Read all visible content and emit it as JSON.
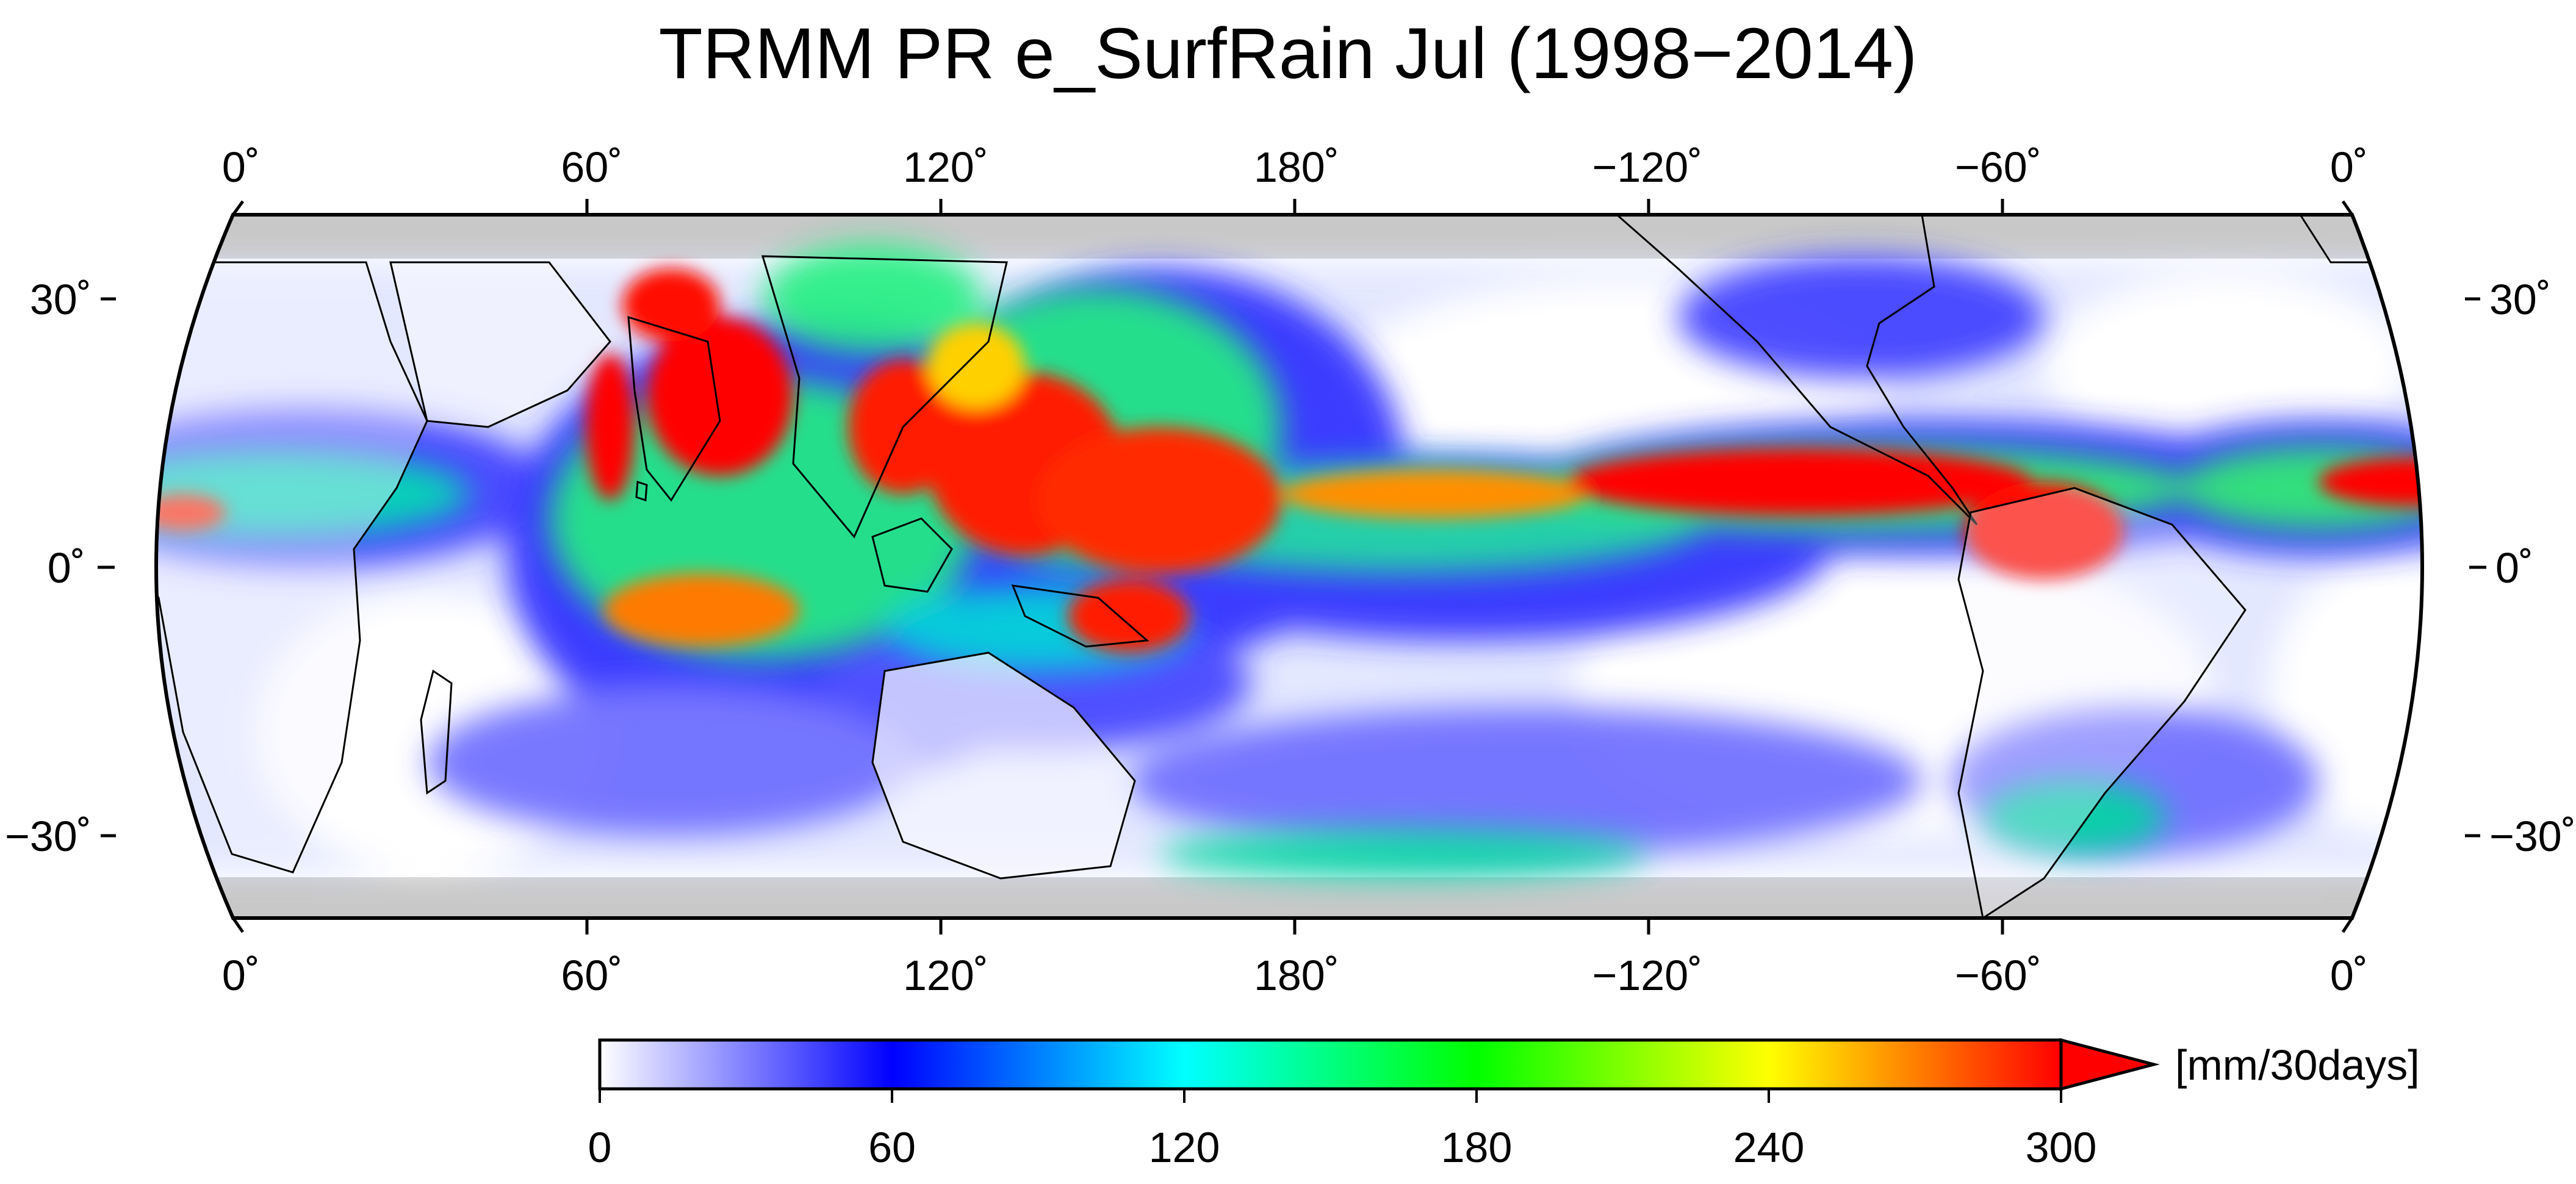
{
  "map": {
    "title": "TRMM PR e_SurfRain Jul (1998−2014)",
    "projection": "Robinson-like (rounded sides), center 180°",
    "longitude_ticks": [
      "0˚",
      "60˚",
      "120˚",
      "180˚",
      "−120˚",
      "−60˚",
      "0˚"
    ],
    "latitude_ticks": [
      "30˚",
      "0˚",
      "−30˚"
    ],
    "coverage_note_visual": "gray bands above ~35N and below ~35S (no data)",
    "colors": {
      "no_data": "#c8c8c8",
      "coastline": "#000000"
    }
  },
  "colorbar": {
    "unit": "[mm/30days]",
    "ticks": [
      "0",
      "60",
      "120",
      "180",
      "240",
      "300"
    ],
    "stops": [
      "#ffffff",
      "#0000ff",
      "#00ffff",
      "#00ff00",
      "#ffff00",
      "#ff0000"
    ],
    "extend": "max"
  }
}
